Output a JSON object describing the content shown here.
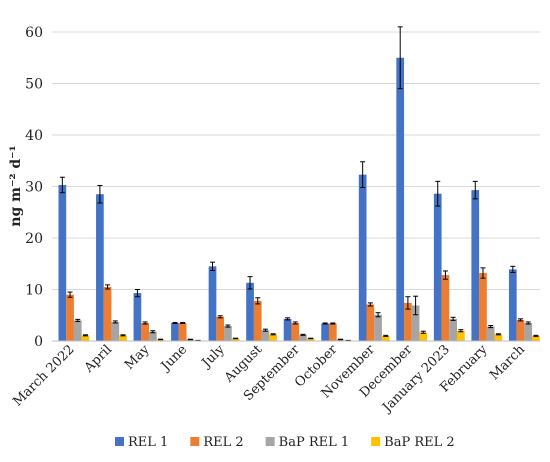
{
  "chart_data": {
    "type": "bar",
    "title": "",
    "xlabel": "",
    "ylabel": "ng  m⁻² d⁻¹",
    "ylim": [
      0,
      60
    ],
    "yticks": [
      0,
      10,
      20,
      30,
      40,
      50,
      60
    ],
    "grid": "horizontal",
    "legend_position": "bottom",
    "error_bars": true,
    "categories": [
      "March 2022",
      "April",
      "May",
      "June",
      "July",
      "August",
      "September",
      "October",
      "November",
      "December",
      "January 2023",
      "February",
      "March"
    ],
    "series": [
      {
        "name": "REL 1",
        "color": "#4472C4",
        "values": [
          30.3,
          28.5,
          9.3,
          3.5,
          14.5,
          11.3,
          4.3,
          3.4,
          32.3,
          55.0,
          28.6,
          29.3,
          13.9
        ],
        "errors": [
          1.5,
          1.7,
          0.7,
          0.1,
          0.8,
          1.2,
          0.2,
          0.1,
          2.5,
          6.0,
          2.4,
          1.7,
          0.6
        ]
      },
      {
        "name": "REL 2",
        "color": "#ED7D31",
        "values": [
          9.0,
          10.5,
          3.5,
          3.5,
          4.7,
          7.8,
          3.5,
          3.4,
          7.1,
          7.4,
          12.8,
          13.2,
          4.1
        ],
        "errors": [
          0.5,
          0.4,
          0.2,
          0.1,
          0.2,
          0.6,
          0.2,
          0.1,
          0.3,
          1.2,
          0.8,
          1.0,
          0.2
        ]
      },
      {
        "name": "BaP REL 1",
        "color": "#A5A5A5",
        "values": [
          4.0,
          3.7,
          1.8,
          0.3,
          2.9,
          2.1,
          1.2,
          0.3,
          5.1,
          6.9,
          4.3,
          2.8,
          3.5
        ],
        "errors": [
          0.2,
          0.2,
          0.2,
          0.05,
          0.2,
          0.2,
          0.1,
          0.05,
          0.4,
          1.8,
          0.3,
          0.2,
          0.2
        ]
      },
      {
        "name": "BaP REL 2",
        "color": "#FFC000",
        "values": [
          1.1,
          1.1,
          0.3,
          0.1,
          0.5,
          1.3,
          0.5,
          0.1,
          1.0,
          1.7,
          2.0,
          1.3,
          1.0
        ],
        "errors": [
          0.1,
          0.1,
          0.05,
          0.02,
          0.05,
          0.1,
          0.05,
          0.02,
          0.1,
          0.2,
          0.2,
          0.1,
          0.1
        ]
      }
    ]
  }
}
